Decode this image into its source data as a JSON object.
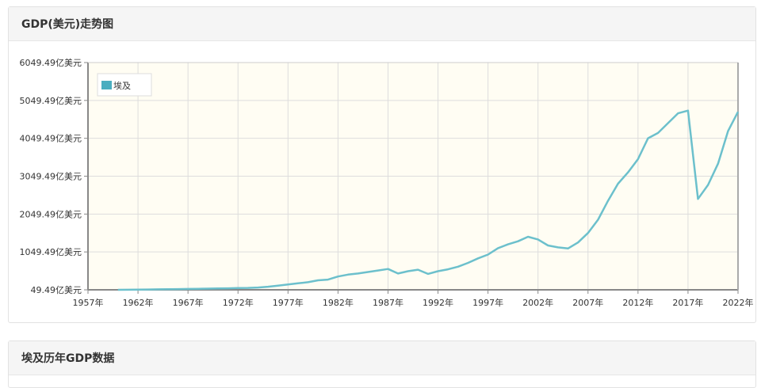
{
  "panels": {
    "trend_title": "GDP(美元)走势图",
    "table_title": "埃及历年GDP数据"
  },
  "colors": {
    "line": "#6cc0cc",
    "legend_swatch": "#4aaec0",
    "plot_bg": "#fffdf3",
    "grid": "#dddddd",
    "axis": "#888888"
  },
  "chart_data": {
    "type": "line",
    "title": "",
    "xlabel": "",
    "ylabel": "",
    "xlim": [
      1957,
      2022
    ],
    "ylim": [
      49.49,
      6049.49
    ],
    "grid": true,
    "legend_position": "top-left",
    "x_ticks": [
      "1957年",
      "1962年",
      "1967年",
      "1972年",
      "1977年",
      "1982年",
      "1987年",
      "1992年",
      "1997年",
      "2002年",
      "2007年",
      "2012年",
      "2017年",
      "2022年"
    ],
    "y_ticks": [
      "49.49亿美元",
      "1049.49亿美元",
      "2049.49亿美元",
      "3049.49亿美元",
      "4049.49亿美元",
      "5049.49亿美元",
      "6049.49亿美元"
    ],
    "series": [
      {
        "name": "埃及",
        "x": [
          1960,
          1961,
          1962,
          1963,
          1964,
          1965,
          1966,
          1967,
          1968,
          1969,
          1970,
          1971,
          1972,
          1973,
          1974,
          1975,
          1976,
          1977,
          1978,
          1979,
          1980,
          1981,
          1982,
          1983,
          1984,
          1985,
          1986,
          1987,
          1988,
          1989,
          1990,
          1991,
          1992,
          1993,
          1994,
          1995,
          1996,
          1997,
          1998,
          1999,
          2000,
          2001,
          2002,
          2003,
          2004,
          2005,
          2006,
          2007,
          2008,
          2009,
          2010,
          2011,
          2012,
          2013,
          2014,
          2015,
          2016,
          2017,
          2018,
          2019,
          2020,
          2021,
          2022
        ],
        "values": [
          50,
          52,
          55,
          58,
          62,
          65,
          68,
          72,
          76,
          80,
          85,
          90,
          95,
          100,
          110,
          130,
          160,
          190,
          220,
          250,
          300,
          320,
          400,
          450,
          480,
          520,
          560,
          600,
          480,
          540,
          580,
          470,
          540,
          590,
          660,
          760,
          880,
          980,
          1150,
          1250,
          1330,
          1450,
          1380,
          1220,
          1170,
          1140,
          1300,
          1550,
          1900,
          2400,
          2850,
          3150,
          3500,
          4050,
          4190,
          4450,
          4710,
          4780,
          2450,
          2820,
          3380,
          4240,
          4750
        ]
      }
    ]
  }
}
